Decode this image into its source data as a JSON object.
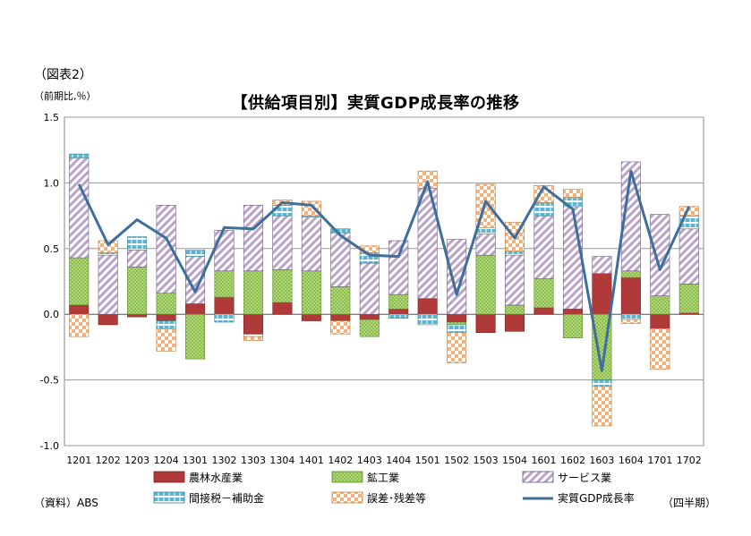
{
  "figure_label": "（図表2）",
  "unit_label": "（前期比,％）",
  "source_label": "（資料）ABS",
  "period_label": "（四半期）",
  "colors": {
    "agriculture": "#b03a3a",
    "mining": "#8cbf4a",
    "services": "#b9a3c9",
    "taxes": "#5bb7cf",
    "discrepancy": "#f4b27a",
    "gdp_line": "#3f6e9b"
  },
  "chart_data": {
    "type": "bar",
    "stacked": true,
    "title": "【供給項目別】実質GDP成長率の推移",
    "xlabel": "",
    "ylabel": "（前期比,％）",
    "ylim": [
      -1.0,
      1.5
    ],
    "y_ticks": [
      "1.5",
      "1.0",
      "0.5",
      "0.0",
      "-0.5",
      "-1.0"
    ],
    "grid": true,
    "legend_position": "bottom",
    "categories": [
      "1201",
      "1202",
      "1203",
      "1204",
      "1301",
      "1302",
      "1303",
      "1304",
      "1401",
      "1402",
      "1403",
      "1404",
      "1501",
      "1502",
      "1503",
      "1504",
      "1601",
      "1602",
      "1603",
      "1604",
      "1701",
      "1702"
    ],
    "series": [
      {
        "key": "agriculture",
        "name": "農林水産業",
        "values": [
          0.07,
          -0.08,
          -0.02,
          -0.05,
          0.08,
          0.13,
          -0.15,
          0.09,
          -0.05,
          -0.05,
          -0.04,
          0.04,
          0.12,
          -0.06,
          -0.14,
          -0.13,
          0.05,
          0.04,
          0.31,
          0.28,
          -0.11,
          0.01
        ]
      },
      {
        "key": "mining",
        "name": "鉱工業",
        "values": [
          0.36,
          0.0,
          0.36,
          0.16,
          -0.34,
          0.2,
          0.33,
          0.25,
          0.33,
          0.21,
          -0.13,
          0.11,
          0.0,
          -0.02,
          0.45,
          0.07,
          0.22,
          -0.18,
          -0.5,
          0.05,
          0.14,
          0.22
        ]
      },
      {
        "key": "services",
        "name": "サービス業",
        "values": [
          0.76,
          0.45,
          0.13,
          0.67,
          0.36,
          0.31,
          0.5,
          0.41,
          0.41,
          0.41,
          0.39,
          0.41,
          0.84,
          0.57,
          0.16,
          0.38,
          0.48,
          0.78,
          0.13,
          0.83,
          0.62,
          0.42
        ]
      },
      {
        "key": "taxes",
        "name": "間接税－補助金",
        "values": [
          0.03,
          0.02,
          0.1,
          -0.06,
          0.05,
          -0.06,
          -0.02,
          0.08,
          0.01,
          0.03,
          0.08,
          -0.03,
          -0.08,
          -0.06,
          0.05,
          0.03,
          0.1,
          0.07,
          -0.05,
          -0.04,
          0.0,
          0.1
        ]
      },
      {
        "key": "discrepancy",
        "name": "誤差･残差等",
        "values": [
          -0.17,
          0.09,
          0.0,
          -0.17,
          0.0,
          0.0,
          -0.03,
          0.04,
          0.11,
          -0.1,
          0.05,
          0.0,
          0.13,
          -0.23,
          0.33,
          0.22,
          0.13,
          0.06,
          -0.3,
          -0.03,
          -0.31,
          0.07
        ]
      }
    ],
    "line": {
      "name": "実質GDP成長率",
      "values": [
        0.99,
        0.53,
        0.72,
        0.58,
        0.17,
        0.66,
        0.65,
        0.85,
        0.83,
        0.6,
        0.45,
        0.44,
        1.01,
        0.15,
        0.86,
        0.58,
        0.97,
        0.8,
        -0.43,
        1.09,
        0.34,
        0.82
      ]
    }
  }
}
